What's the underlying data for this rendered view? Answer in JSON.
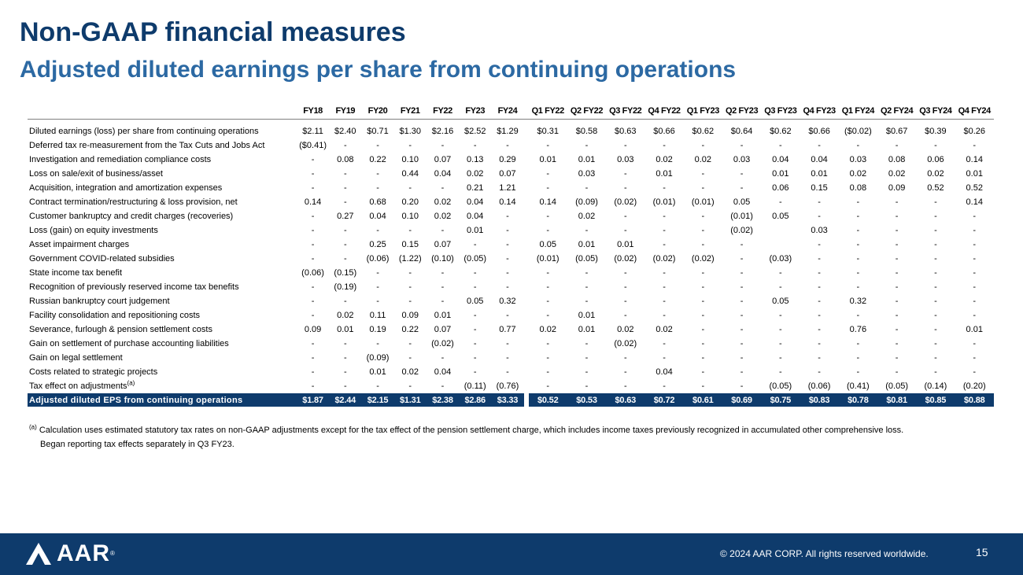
{
  "header": {
    "title": "Non-GAAP financial measures",
    "subtitle": "Adjusted diluted earnings per share from continuing operations"
  },
  "table": {
    "annual_columns": [
      "FY18",
      "FY19",
      "FY20",
      "FY21",
      "FY22",
      "FY23",
      "FY24"
    ],
    "quarter_columns": [
      "Q1 FY22",
      "Q2 FY22",
      "Q3 FY22",
      "Q4 FY22",
      "Q1 FY23",
      "Q2 FY23",
      "Q3 FY23",
      "Q4 FY23",
      "Q1 FY24",
      "Q2 FY24",
      "Q3 FY24",
      "Q4 FY24"
    ],
    "rows": [
      {
        "label": "Diluted earnings (loss) per share from continuing operations",
        "annual": [
          "$2.11",
          "$2.40",
          "$0.71",
          "$1.30",
          "$2.16",
          "$2.52",
          "$1.29"
        ],
        "quarterly": [
          "$0.31",
          "$0.58",
          "$0.63",
          "$0.66",
          "$0.62",
          "$0.64",
          "$0.62",
          "$0.66",
          "($0.02)",
          "$0.67",
          "$0.39",
          "$0.26"
        ]
      },
      {
        "label": "Deferred tax re-measurement from the Tax Cuts and Jobs Act",
        "annual": [
          "($0.41)",
          "-",
          "-",
          "-",
          "-",
          "-",
          "-"
        ],
        "quarterly": [
          "-",
          "-",
          "-",
          "-",
          "-",
          "-",
          "-",
          "-",
          "-",
          "-",
          "-",
          "-"
        ]
      },
      {
        "label": "Investigation and remediation compliance costs",
        "annual": [
          "-",
          "0.08",
          "0.22",
          "0.10",
          "0.07",
          "0.13",
          "0.29"
        ],
        "quarterly": [
          "0.01",
          "0.01",
          "0.03",
          "0.02",
          "0.02",
          "0.03",
          "0.04",
          "0.04",
          "0.03",
          "0.08",
          "0.06",
          "0.14"
        ]
      },
      {
        "label": "Loss on sale/exit of business/asset",
        "annual": [
          "-",
          "-",
          "-",
          "0.44",
          "0.04",
          "0.02",
          "0.07"
        ],
        "quarterly": [
          "-",
          "0.03",
          "-",
          "0.01",
          "-",
          "-",
          "0.01",
          "0.01",
          "0.02",
          "0.02",
          "0.02",
          "0.01"
        ]
      },
      {
        "label": "Acquisition, integration and amortization expenses",
        "annual": [
          "-",
          "-",
          "-",
          "-",
          "-",
          "0.21",
          "1.21"
        ],
        "quarterly": [
          "-",
          "-",
          "-",
          "-",
          "-",
          "-",
          "0.06",
          "0.15",
          "0.08",
          "0.09",
          "0.52",
          "0.52"
        ]
      },
      {
        "label": "Contract termination/restructuring & loss provision, net",
        "annual": [
          "0.14",
          "-",
          "0.68",
          "0.20",
          "0.02",
          "0.04",
          "0.14"
        ],
        "quarterly": [
          "0.14",
          "(0.09)",
          "(0.02)",
          "(0.01)",
          "(0.01)",
          "0.05",
          "-",
          "-",
          "-",
          "-",
          "-",
          "0.14"
        ]
      },
      {
        "label": "Customer bankruptcy and credit charges (recoveries)",
        "annual": [
          "-",
          "0.27",
          "0.04",
          "0.10",
          "0.02",
          "0.04",
          "-"
        ],
        "quarterly": [
          "-",
          "0.02",
          "-",
          "-",
          "-",
          "(0.01)",
          "0.05",
          "-",
          "-",
          "-",
          "-",
          "-"
        ]
      },
      {
        "label": "Loss (gain) on equity investments",
        "annual": [
          "-",
          "-",
          "-",
          "-",
          "-",
          "0.01",
          "-"
        ],
        "quarterly": [
          "-",
          "-",
          "-",
          "-",
          "-",
          "(0.02)",
          "",
          "0.03",
          "-",
          "-",
          "-",
          "-"
        ]
      },
      {
        "label": "Asset impairment charges",
        "annual": [
          "-",
          "-",
          "0.25",
          "0.15",
          "0.07",
          "-",
          "-"
        ],
        "quarterly": [
          "0.05",
          "0.01",
          "0.01",
          "-",
          "-",
          "-",
          "",
          "-",
          "-",
          "-",
          "-",
          "-"
        ]
      },
      {
        "label": "Government COVID-related subsidies",
        "annual": [
          "-",
          "-",
          "(0.06)",
          "(1.22)",
          "(0.10)",
          "(0.05)",
          "-"
        ],
        "quarterly": [
          "(0.01)",
          "(0.05)",
          "(0.02)",
          "(0.02)",
          "(0.02)",
          "-",
          "(0.03)",
          "-",
          "-",
          "-",
          "-",
          "-"
        ]
      },
      {
        "label": "State income tax benefit",
        "annual": [
          "(0.06)",
          "(0.15)",
          "-",
          "-",
          "-",
          "-",
          "-"
        ],
        "quarterly": [
          "-",
          "-",
          "-",
          "-",
          "-",
          "-",
          "-",
          "-",
          "-",
          "-",
          "-",
          "-"
        ]
      },
      {
        "label": "Recognition of previously reserved income tax benefits",
        "annual": [
          "-",
          "(0.19)",
          "-",
          "-",
          "-",
          "-",
          "-"
        ],
        "quarterly": [
          "-",
          "-",
          "-",
          "-",
          "-",
          "-",
          "-",
          "-",
          "-",
          "-",
          "-",
          "-"
        ]
      },
      {
        "label": "Russian bankruptcy court judgement",
        "annual": [
          "-",
          "-",
          "-",
          "-",
          "-",
          "0.05",
          "0.32"
        ],
        "quarterly": [
          "-",
          "-",
          "-",
          "-",
          "-",
          "-",
          "0.05",
          "-",
          "0.32",
          "-",
          "-",
          "-"
        ]
      },
      {
        "label": "Facility consolidation and repositioning costs",
        "annual": [
          "-",
          "0.02",
          "0.11",
          "0.09",
          "0.01",
          "-",
          "-"
        ],
        "quarterly": [
          "-",
          "0.01",
          "-",
          "-",
          "-",
          "-",
          "-",
          "-",
          "-",
          "-",
          "-",
          "-"
        ]
      },
      {
        "label": "Severance, furlough & pension settlement costs",
        "annual": [
          "0.09",
          "0.01",
          "0.19",
          "0.22",
          "0.07",
          "-",
          "0.77"
        ],
        "quarterly": [
          "0.02",
          "0.01",
          "0.02",
          "0.02",
          "-",
          "-",
          "-",
          "-",
          "0.76",
          "-",
          "-",
          "0.01"
        ]
      },
      {
        "label": "Gain on settlement of purchase accounting liabilities",
        "annual": [
          "-",
          "-",
          "-",
          "-",
          "(0.02)",
          "-",
          "-"
        ],
        "quarterly": [
          "-",
          "-",
          "(0.02)",
          "-",
          "-",
          "-",
          "-",
          "-",
          "-",
          "-",
          "-",
          "-"
        ]
      },
      {
        "label": "Gain on legal settlement",
        "annual": [
          "-",
          "-",
          "(0.09)",
          "-",
          "-",
          "-",
          "-"
        ],
        "quarterly": [
          "-",
          "-",
          "-",
          "-",
          "-",
          "-",
          "-",
          "-",
          "-",
          "-",
          "-",
          "-"
        ]
      },
      {
        "label": "Costs related to strategic projects",
        "annual": [
          "-",
          "-",
          "0.01",
          "0.02",
          "0.04",
          "-",
          "-"
        ],
        "quarterly": [
          "-",
          "-",
          "-",
          "0.04",
          "-",
          "-",
          "-",
          "-",
          "-",
          "-",
          "-",
          "-"
        ]
      },
      {
        "label": "Tax effect on adjustments",
        "footnote_marker": "(a)",
        "annual": [
          "-",
          "-",
          "-",
          "-",
          "-",
          "(0.11)",
          "(0.76)"
        ],
        "quarterly": [
          "-",
          "-",
          "-",
          "-",
          "-",
          "-",
          "(0.05)",
          "(0.06)",
          "(0.41)",
          "(0.05)",
          "(0.14)",
          "(0.20)"
        ]
      }
    ],
    "total": {
      "label": "Adjusted diluted EPS from continuing operations",
      "annual": [
        "$1.87",
        "$2.44",
        "$2.15",
        "$1.31",
        "$2.38",
        "$2.86",
        "$3.33"
      ],
      "quarterly": [
        "$0.52",
        "$0.53",
        "$0.63",
        "$0.72",
        "$0.61",
        "$0.69",
        "$0.75",
        "$0.83",
        "$0.78",
        "$0.81",
        "$0.85",
        "$0.88"
      ]
    }
  },
  "footnote": {
    "marker": "(a)",
    "line1": "Calculation uses estimated statutory tax rates on non-GAAP adjustments except for the tax effect of the pension settlement charge, which includes income taxes previously recognized in accumulated other comprehensive loss.",
    "line2": "Began reporting tax effects separately in Q3 FY23."
  },
  "footer": {
    "logo_text": "AAR",
    "logo_registered": "®",
    "copyright": "© 2024 AAR CORP. All rights reserved worldwide.",
    "page_number": "15"
  },
  "colors": {
    "navy": "#0e3b6c",
    "accent_blue": "#2c69a3",
    "white": "#ffffff"
  }
}
